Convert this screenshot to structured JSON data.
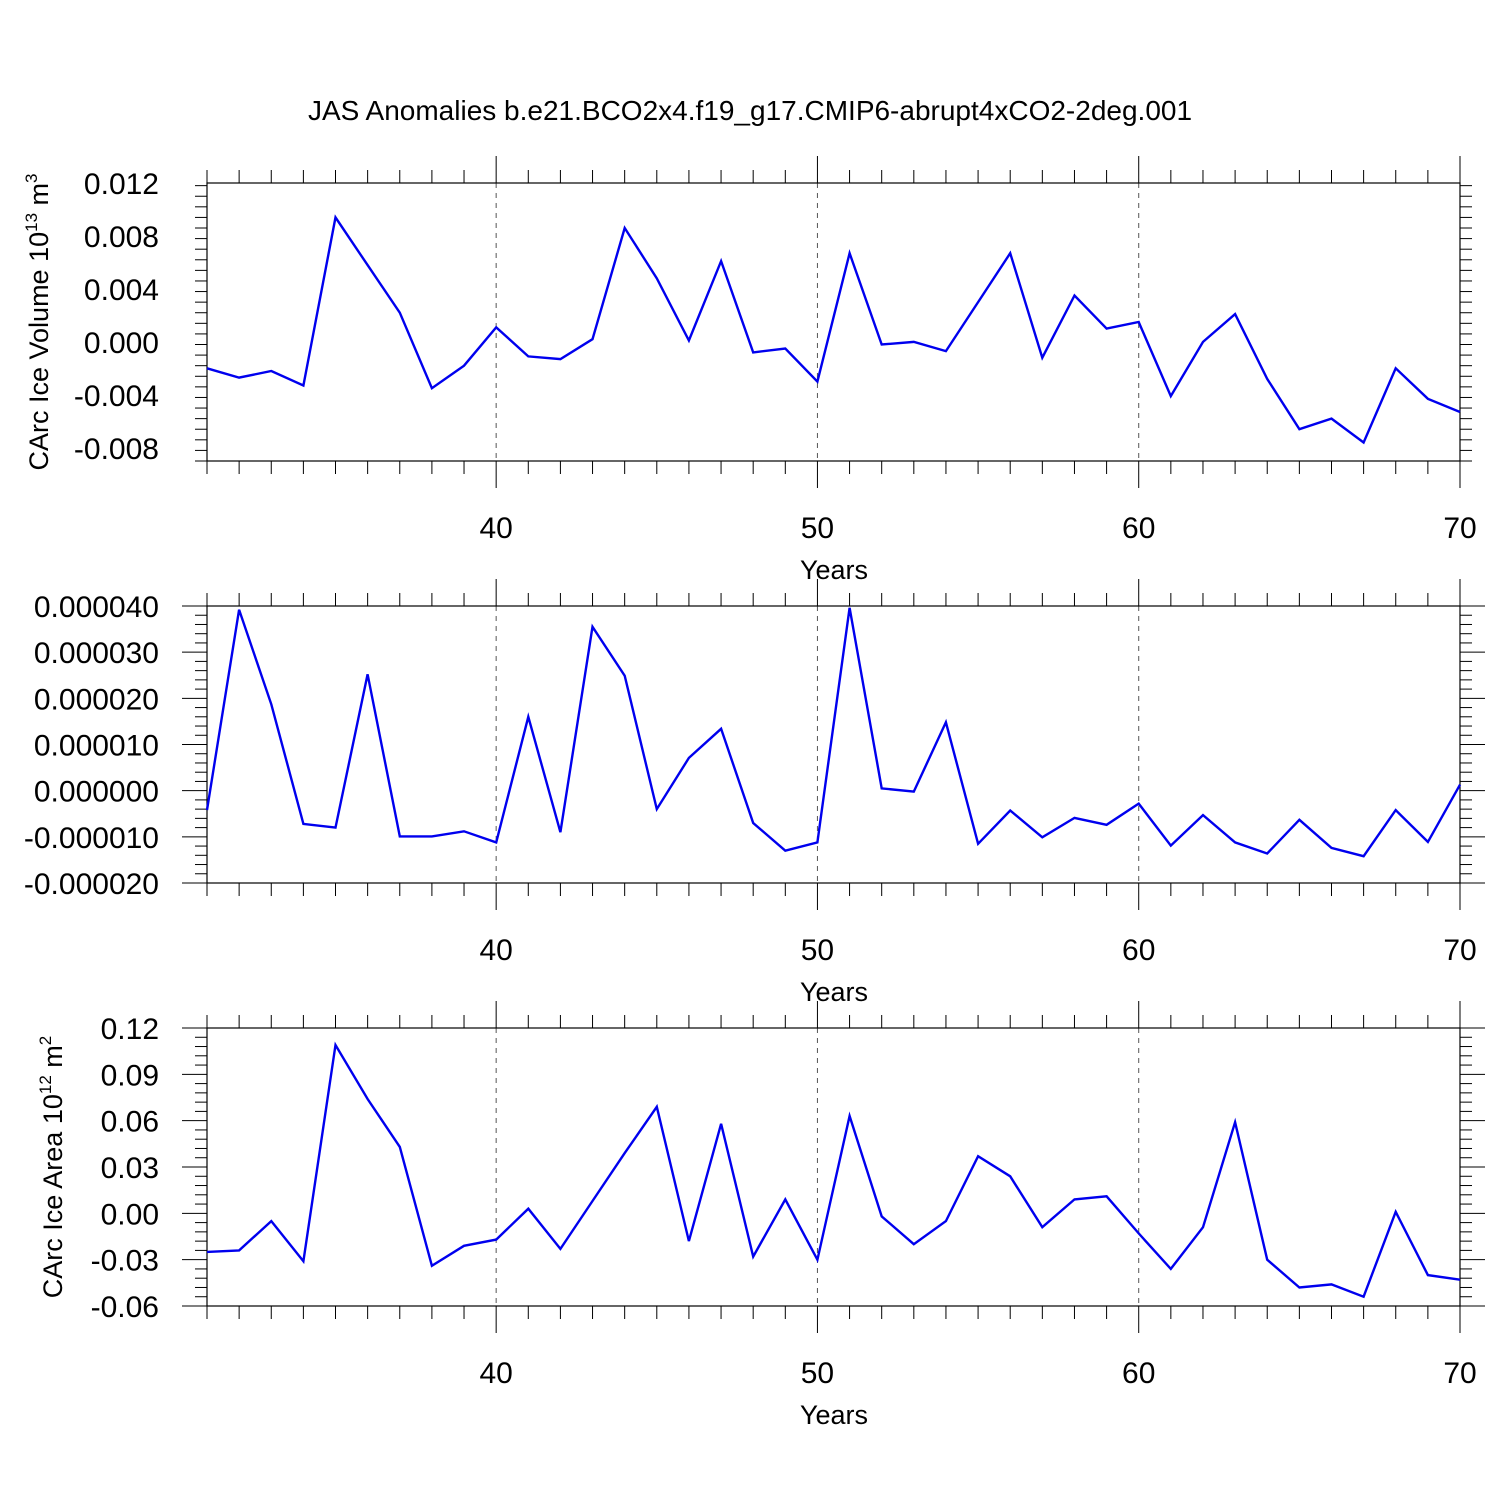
{
  "title": "JAS Anomalies b.e21.BCO2x4.f19_g17.CMIP6-abrupt4xCO2-2deg.001",
  "colors": {
    "line": "#0000ee",
    "axis": "#000000",
    "grid": "#555555"
  },
  "chart_data": [
    {
      "type": "line",
      "title": "",
      "xlabel": "Years",
      "ylabel": {
        "text": "CArc Ice Volume 10",
        "sup1": "13",
        "mid": " m",
        "sup2": "3"
      },
      "xlim": [
        31,
        70
      ],
      "ylim": [
        -0.009,
        0.012
      ],
      "xticks": [
        40,
        50,
        60,
        70
      ],
      "xtick_labels": [
        "40",
        "50",
        "60",
        "70"
      ],
      "yticks": [
        -0.008,
        -0.004,
        0.0,
        0.004,
        0.008,
        0.012
      ],
      "ytick_labels": [
        "-0.008",
        "-0.004",
        "0.000",
        "0.004",
        "0.008",
        "0.012"
      ],
      "grid": "dashed vertical at major x ticks",
      "x": [
        31,
        32,
        33,
        34,
        35,
        36,
        37,
        38,
        39,
        40,
        41,
        42,
        43,
        44,
        45,
        46,
        47,
        48,
        49,
        50,
        51,
        52,
        53,
        54,
        55,
        56,
        57,
        58,
        59,
        60,
        61,
        62,
        63,
        64,
        65,
        66,
        67,
        68,
        69,
        70
      ],
      "series": [
        {
          "values": [
            -0.002,
            -0.0027,
            -0.0022,
            -0.0033,
            0.0094,
            0.0058,
            0.0022,
            -0.0035,
            -0.0018,
            0.0011,
            -0.0011,
            -0.0013,
            0.0002,
            0.0086,
            0.0048,
            0.0001,
            0.0061,
            -0.0008,
            -0.0005,
            -0.003,
            0.0067,
            -0.0002,
            0.0,
            -0.0007,
            0.003,
            0.0067,
            -0.0012,
            0.0035,
            0.001,
            0.0015,
            -0.0041,
            0.0,
            0.0021,
            -0.0028,
            -0.0066,
            -0.0058,
            -0.0076,
            -0.002,
            -0.0043,
            -0.0053
          ]
        }
      ]
    },
    {
      "type": "line",
      "title": "",
      "xlabel": "Years",
      "ylabel": null,
      "xlim": [
        31,
        70
      ],
      "ylim": [
        -2e-05,
        4e-05
      ],
      "xticks": [
        40,
        50,
        60,
        70
      ],
      "xtick_labels": [
        "40",
        "50",
        "60",
        "70"
      ],
      "yticks": [
        -2e-05,
        -1e-05,
        0.0,
        1e-05,
        2e-05,
        3e-05,
        4e-05
      ],
      "ytick_labels": [
        "-0.000020",
        "-0.000010",
        "0.000000",
        "0.000010",
        "0.000020",
        "0.000030",
        "0.000040"
      ],
      "grid": "dashed vertical at major x ticks",
      "x": [
        31,
        32,
        33,
        34,
        35,
        36,
        37,
        38,
        39,
        40,
        41,
        42,
        43,
        44,
        45,
        46,
        47,
        48,
        49,
        50,
        51,
        52,
        53,
        54,
        55,
        56,
        57,
        58,
        59,
        60,
        61,
        62,
        63,
        64,
        65,
        66,
        67,
        68,
        69,
        70
      ],
      "series": [
        {
          "values": [
            -4.2e-06,
            3.92e-05,
            1.87e-05,
            -7.2e-06,
            -8e-06,
            2.52e-05,
            -9.9e-06,
            -9.9e-06,
            -8.8e-06,
            -1.12e-05,
            1.6e-05,
            -9e-06,
            3.55e-05,
            2.49e-05,
            -4e-06,
            7.1e-06,
            1.34e-05,
            -7e-06,
            -1.3e-05,
            -1.12e-05,
            3.96e-05,
            5e-07,
            -2e-07,
            1.48e-05,
            -1.15e-05,
            -4.3e-06,
            -1.01e-05,
            -5.9e-06,
            -7.4e-06,
            -2.8e-06,
            -1.19e-05,
            -5.3e-06,
            -1.12e-05,
            -1.36e-05,
            -6.3e-06,
            -1.24e-05,
            -1.42e-05,
            -4.2e-06,
            -1.11e-05,
            1.3e-06
          ]
        }
      ]
    },
    {
      "type": "line",
      "title": "",
      "xlabel": "Years",
      "ylabel": {
        "text": "CArc Ice Area 10",
        "sup1": "12",
        "mid": " m",
        "sup2": "2"
      },
      "xlim": [
        31,
        70
      ],
      "ylim": [
        -0.06,
        0.12
      ],
      "xticks": [
        40,
        50,
        60,
        70
      ],
      "xtick_labels": [
        "40",
        "50",
        "60",
        "70"
      ],
      "yticks": [
        -0.06,
        -0.03,
        0.0,
        0.03,
        0.06,
        0.09,
        0.12
      ],
      "ytick_labels": [
        "-0.06",
        "-0.03",
        "0.00",
        "0.03",
        "0.06",
        "0.09",
        "0.12"
      ],
      "grid": "dashed vertical at major x ticks",
      "x": [
        31,
        32,
        33,
        34,
        35,
        36,
        37,
        38,
        39,
        40,
        41,
        42,
        43,
        44,
        45,
        46,
        47,
        48,
        49,
        50,
        51,
        52,
        53,
        54,
        55,
        56,
        57,
        58,
        59,
        60,
        61,
        62,
        63,
        64,
        65,
        66,
        67,
        68,
        69,
        70
      ],
      "series": [
        {
          "values": [
            -0.025,
            -0.024,
            -0.005,
            -0.031,
            0.109,
            0.074,
            0.043,
            -0.034,
            -0.021,
            -0.017,
            0.003,
            -0.023,
            0.008,
            0.039,
            0.069,
            -0.018,
            0.058,
            -0.028,
            0.009,
            -0.03,
            0.063,
            -0.002,
            -0.02,
            -0.005,
            0.037,
            0.024,
            -0.009,
            0.009,
            0.011,
            -0.013,
            -0.036,
            -0.009,
            0.059,
            -0.03,
            -0.048,
            -0.046,
            -0.054,
            0.001,
            -0.04,
            -0.043
          ]
        }
      ]
    }
  ]
}
